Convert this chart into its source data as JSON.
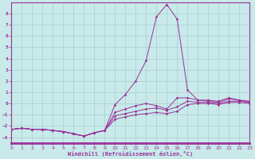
{
  "xlabel": "Windchill (Refroidissement éolien,°C)",
  "bg_color": "#c8eaea",
  "grid_color": "#aacccc",
  "line_color": "#993399",
  "xlim_min": 0,
  "xlim_max": 23,
  "ylim_min": -3.5,
  "ylim_max": 9.0,
  "xticks": [
    0,
    1,
    2,
    3,
    4,
    5,
    6,
    7,
    8,
    9,
    10,
    11,
    12,
    13,
    14,
    15,
    16,
    17,
    18,
    19,
    20,
    21,
    22,
    23
  ],
  "yticks": [
    -3,
    -2,
    -1,
    0,
    1,
    2,
    3,
    4,
    5,
    6,
    7,
    8
  ],
  "hours": [
    0,
    1,
    2,
    3,
    4,
    5,
    6,
    7,
    8,
    9,
    10,
    11,
    12,
    13,
    14,
    15,
    16,
    17,
    18,
    19,
    20,
    21,
    22,
    23
  ],
  "line1": [
    -2.3,
    -2.2,
    -2.3,
    -2.3,
    -2.4,
    -2.5,
    -2.7,
    -2.9,
    -2.6,
    -2.4,
    -0.1,
    0.8,
    2.0,
    3.8,
    7.7,
    8.8,
    7.5,
    1.2,
    0.3,
    0.3,
    0.2,
    0.5,
    0.3,
    0.1
  ],
  "line2": [
    -2.3,
    -2.2,
    -2.3,
    -2.3,
    -2.4,
    -2.5,
    -2.7,
    -2.9,
    -2.6,
    -2.4,
    -0.8,
    -0.5,
    -0.2,
    0.0,
    -0.2,
    -0.5,
    0.5,
    0.5,
    0.3,
    0.2,
    0.1,
    0.4,
    0.3,
    0.2
  ],
  "line3": [
    -2.3,
    -2.2,
    -2.3,
    -2.3,
    -2.4,
    -2.5,
    -2.7,
    -2.9,
    -2.6,
    -2.4,
    -1.1,
    -0.9,
    -0.7,
    -0.5,
    -0.4,
    -0.6,
    -0.3,
    0.2,
    0.1,
    0.1,
    0.0,
    0.2,
    0.2,
    0.1
  ],
  "line4": [
    -2.3,
    -2.2,
    -2.3,
    -2.3,
    -2.4,
    -2.5,
    -2.7,
    -2.9,
    -2.6,
    -2.4,
    -1.4,
    -1.2,
    -1.0,
    -0.9,
    -0.8,
    -0.9,
    -0.7,
    -0.1,
    0.0,
    0.0,
    -0.1,
    0.1,
    0.1,
    0.0
  ]
}
